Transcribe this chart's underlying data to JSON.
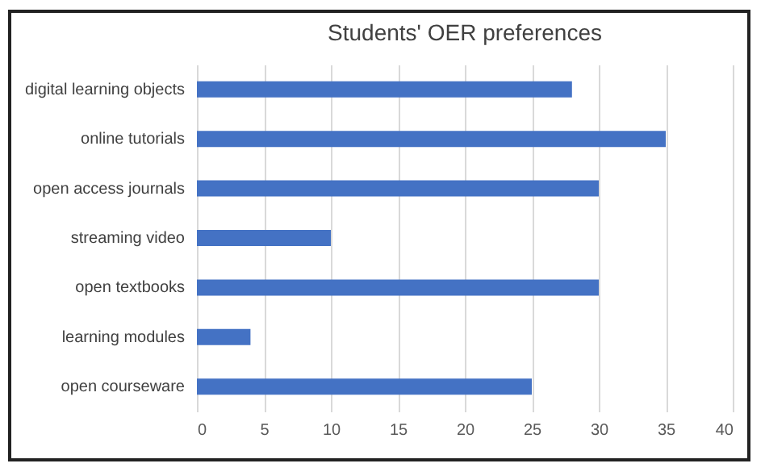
{
  "chart_data": {
    "type": "bar",
    "orientation": "horizontal",
    "title": "Students' OER preferences",
    "categories": [
      "digital learning objects",
      "online tutorials",
      "open access journals",
      "streaming video",
      "open textbooks",
      "learning modules",
      "open courseware"
    ],
    "values": [
      28,
      35,
      30,
      10,
      30,
      4,
      25
    ],
    "color": "#4472c4",
    "xlim": [
      0,
      40
    ],
    "xticks": [
      0,
      5,
      10,
      15,
      20,
      25,
      30,
      35,
      40
    ],
    "grid": "x"
  }
}
